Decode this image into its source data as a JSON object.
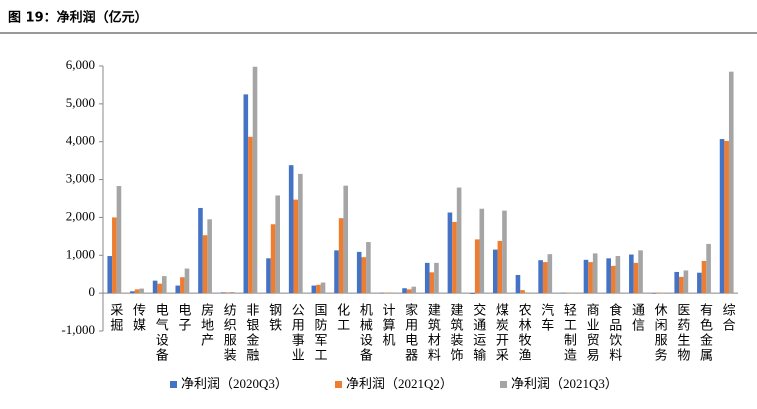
{
  "chart_data": {
    "type": "bar",
    "title": "图 19：净利润（亿元）",
    "categories": [
      "采掘",
      "传媒",
      "电气设备",
      "电子",
      "房地产",
      "纺织服装",
      "非银金融",
      "钢铁",
      "公用事业",
      "国防军工",
      "化工",
      "机械设备",
      "计算机",
      "家用电器",
      "建筑材料",
      "建筑装饰",
      "交通运输",
      "煤炭开采",
      "农林牧渔",
      "汽车",
      "轻工制造",
      "商业贸易",
      "食品饮料",
      "通信",
      "休闲服务",
      "医药生物",
      "有色金属",
      "综合"
    ],
    "series": [
      {
        "name": "净利润（2020Q3）",
        "color": "#4472c4",
        "values": [
          980,
          50,
          330,
          200,
          2250,
          20,
          5250,
          920,
          3380,
          200,
          1130,
          1090,
          10,
          130,
          800,
          2130,
          -20,
          1150,
          480,
          870,
          10,
          880,
          920,
          1020,
          -10,
          560,
          540,
          4070
        ]
      },
      {
        "name": "净利润（2021Q2）",
        "color": "#ed7d31",
        "values": [
          2000,
          100,
          250,
          420,
          1530,
          20,
          4130,
          1820,
          2470,
          220,
          1980,
          950,
          10,
          100,
          550,
          1880,
          1420,
          1380,
          80,
          820,
          10,
          820,
          720,
          800,
          10,
          430,
          850,
          4020
        ]
      },
      {
        "name": "净利润（2021Q3）",
        "color": "#a5a5a5",
        "values": [
          2830,
          120,
          450,
          650,
          1950,
          30,
          5980,
          2580,
          3150,
          280,
          2840,
          1350,
          20,
          170,
          800,
          2790,
          2230,
          2180,
          20,
          1030,
          15,
          1050,
          980,
          1130,
          15,
          600,
          1300,
          5850
        ]
      }
    ],
    "ylim": [
      -1000,
      6000
    ],
    "yticks": [
      {
        "value": -1000,
        "label": "-1,000"
      },
      0,
      {
        "value": 1000,
        "label": "1,000"
      },
      {
        "value": 2000,
        "label": "2,000"
      },
      {
        "value": 3000,
        "label": "3,000"
      },
      {
        "value": 4000,
        "label": "4,000"
      },
      {
        "value": 5000,
        "label": "5,000"
      },
      {
        "value": 6000,
        "label": "6,000"
      }
    ],
    "legend": "bottom"
  }
}
